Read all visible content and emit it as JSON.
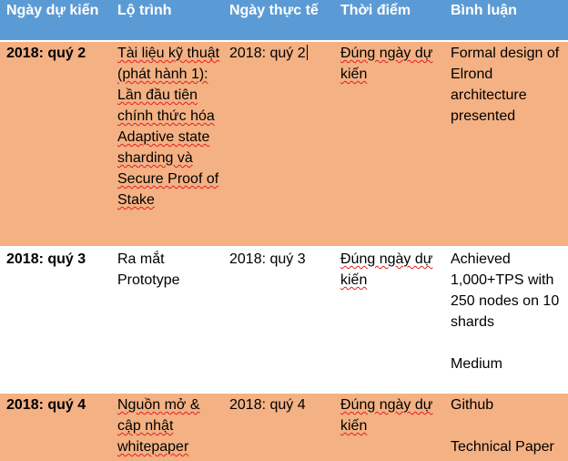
{
  "header": {
    "planned_date": "Ngày dự kiến",
    "roadmap": "Lộ trình",
    "actual_date": "Ngày thực tế",
    "timing": "Thời điểm",
    "comment": "Bình luận"
  },
  "rows": [
    {
      "planned": "2018: quý 2",
      "roadmap": "Tài liệu kỹ thuật (phát hành 1): Lần đầu tiên chính thức hóa Adaptive state sharding và Secure Proof of Stake",
      "actual": "2018: quý 2",
      "timing": "Đúng ngày dự kiến",
      "comment": [
        "Formal design of Elrond architecture presented"
      ]
    },
    {
      "planned": "2018: quý 3",
      "roadmap": "Ra mắt Prototype",
      "actual": "2018: quý 3",
      "timing": "Đúng ngày dự kiến",
      "comment": [
        "Achieved 1,000+TPS with 250 nodes on 10 shards",
        "Medium"
      ]
    },
    {
      "planned": "2018: quý 4",
      "roadmap": "Nguồn mở & cập nhật whitepaper",
      "actual": "2018: quý 4",
      "timing": "Đúng ngày dự kiến",
      "comment": [
        "Github",
        "Technical Paper"
      ]
    }
  ],
  "colors": {
    "header_bg": "#5b9bd5",
    "row_orange": "#f4b183",
    "row_white": "#ffffff"
  }
}
